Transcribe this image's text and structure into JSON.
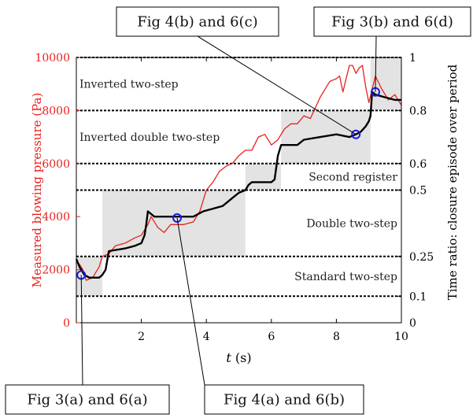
{
  "chart_data": {
    "type": "line",
    "xlabel": "t (s)",
    "ylabel_left": "Measured blowing pressure (Pa)",
    "ylabel_right": "Time ratio: closure episode over period",
    "xlim": [
      0,
      10
    ],
    "ylim_left": [
      0,
      10000
    ],
    "ylim_right": [
      0,
      1
    ],
    "x_ticks": [
      2,
      4,
      6,
      8,
      10
    ],
    "y_ticks_left": [
      0,
      2000,
      4000,
      6000,
      8000,
      10000
    ],
    "y_ticks_right": [
      0,
      0.1,
      0.25,
      0.5,
      0.6,
      0.8,
      1
    ],
    "y_ticks_right_labels": [
      "0",
      "0.1",
      "0.25",
      "0.5",
      "0.6",
      "0.8",
      "1"
    ],
    "threshold_lines_right": [
      0.1,
      0.25,
      0.5,
      0.6,
      0.8,
      1
    ],
    "regions": [
      {
        "label": "Inverted two-step",
        "ymin": 0.8,
        "ymax": 1
      },
      {
        "label": "Inverted double two-step",
        "ymin": 0.6,
        "ymax": 0.8
      },
      {
        "label": "Second register",
        "ymin": 0.5,
        "ymax": 0.6
      },
      {
        "label": "Double two-step",
        "ymin": 0.25,
        "ymax": 0.5
      },
      {
        "label": "Standard two-step",
        "ymin": 0.1,
        "ymax": 0.25
      }
    ],
    "shaded_spans": [
      {
        "x": [
          0,
          0.8
        ],
        "y": [
          0.1,
          0.25
        ]
      },
      {
        "x": [
          0.8,
          5.2
        ],
        "y": [
          0.25,
          0.5
        ]
      },
      {
        "x": [
          5.2,
          6.3
        ],
        "y": [
          0.5,
          0.6
        ]
      },
      {
        "x": [
          6.3,
          9.05
        ],
        "y": [
          0.6,
          0.8
        ]
      },
      {
        "x": [
          9.05,
          10
        ],
        "y": [
          0.8,
          1
        ]
      }
    ],
    "series": [
      {
        "axis": "left",
        "color": "#e8211d",
        "x": [
          0,
          0.1,
          0.2,
          0.3,
          0.5,
          0.7,
          0.8,
          1.0,
          1.2,
          1.5,
          1.8,
          2.0,
          2.2,
          2.3,
          2.5,
          2.7,
          2.9,
          3.1,
          3.3,
          3.6,
          3.8,
          4.0,
          4.2,
          4.4,
          4.6,
          4.8,
          5.0,
          5.2,
          5.4,
          5.6,
          5.8,
          6.0,
          6.2,
          6.4,
          6.6,
          6.8,
          7.0,
          7.2,
          7.5,
          7.8,
          8.0,
          8.1,
          8.2,
          8.4,
          8.5,
          8.6,
          8.7,
          8.8,
          8.9,
          9.0,
          9.2,
          9.4,
          9.6,
          9.8,
          10.0
        ],
        "y": [
          2300,
          2200,
          2000,
          1600,
          1700,
          2100,
          2500,
          2600,
          2900,
          3000,
          3200,
          3300,
          3700,
          4000,
          3600,
          3400,
          3700,
          3700,
          3700,
          3800,
          4200,
          5000,
          5300,
          5700,
          5900,
          6000,
          6300,
          6500,
          6500,
          7000,
          7100,
          6700,
          6900,
          7300,
          7500,
          7500,
          7800,
          7700,
          8500,
          9100,
          9200,
          9300,
          8700,
          9700,
          9700,
          9400,
          9600,
          9700,
          8900,
          8300,
          9300,
          8800,
          8400,
          8600,
          8200
        ]
      },
      {
        "axis": "right",
        "color": "#000000",
        "x": [
          0,
          0.1,
          0.25,
          0.4,
          0.5,
          0.6,
          0.7,
          0.8,
          0.9,
          1.0,
          1.5,
          1.8,
          2.0,
          2.1,
          2.15,
          2.2,
          2.4,
          2.5,
          3.0,
          3.3,
          3.6,
          3.9,
          4.2,
          4.5,
          4.8,
          5.0,
          5.2,
          5.3,
          5.4,
          5.6,
          5.8,
          6.0,
          6.1,
          6.2,
          6.3,
          6.5,
          6.8,
          7.0,
          7.5,
          8.0,
          8.4,
          8.6,
          8.75,
          8.9,
          9.0,
          9.05,
          9.1,
          9.2,
          9.5,
          9.8,
          10.0
        ],
        "y": [
          0.24,
          0.21,
          0.18,
          0.17,
          0.17,
          0.17,
          0.17,
          0.18,
          0.2,
          0.27,
          0.28,
          0.29,
          0.3,
          0.33,
          0.37,
          0.42,
          0.4,
          0.4,
          0.4,
          0.4,
          0.4,
          0.42,
          0.43,
          0.44,
          0.47,
          0.49,
          0.5,
          0.52,
          0.53,
          0.53,
          0.53,
          0.53,
          0.54,
          0.63,
          0.67,
          0.67,
          0.67,
          0.69,
          0.7,
          0.71,
          0.7,
          0.71,
          0.72,
          0.74,
          0.76,
          0.78,
          0.87,
          0.86,
          0.85,
          0.84,
          0.84
        ]
      }
    ],
    "markers": [
      {
        "x": 0.15,
        "y": 1800
      },
      {
        "x": 3.1,
        "y": 3950
      },
      {
        "x": 8.6,
        "y": 7100
      },
      {
        "x": 9.2,
        "y": 8700
      }
    ],
    "annotations": [
      {
        "text": "Fig 4(b) and 6(c)",
        "target": 2
      },
      {
        "text": "Fig 3(b) and 6(d)",
        "target": 3
      },
      {
        "text": "Fig 3(a) and 6(a)",
        "target": 0
      },
      {
        "text": "Fig 4(a) and 6(b)",
        "target": 1
      }
    ]
  }
}
